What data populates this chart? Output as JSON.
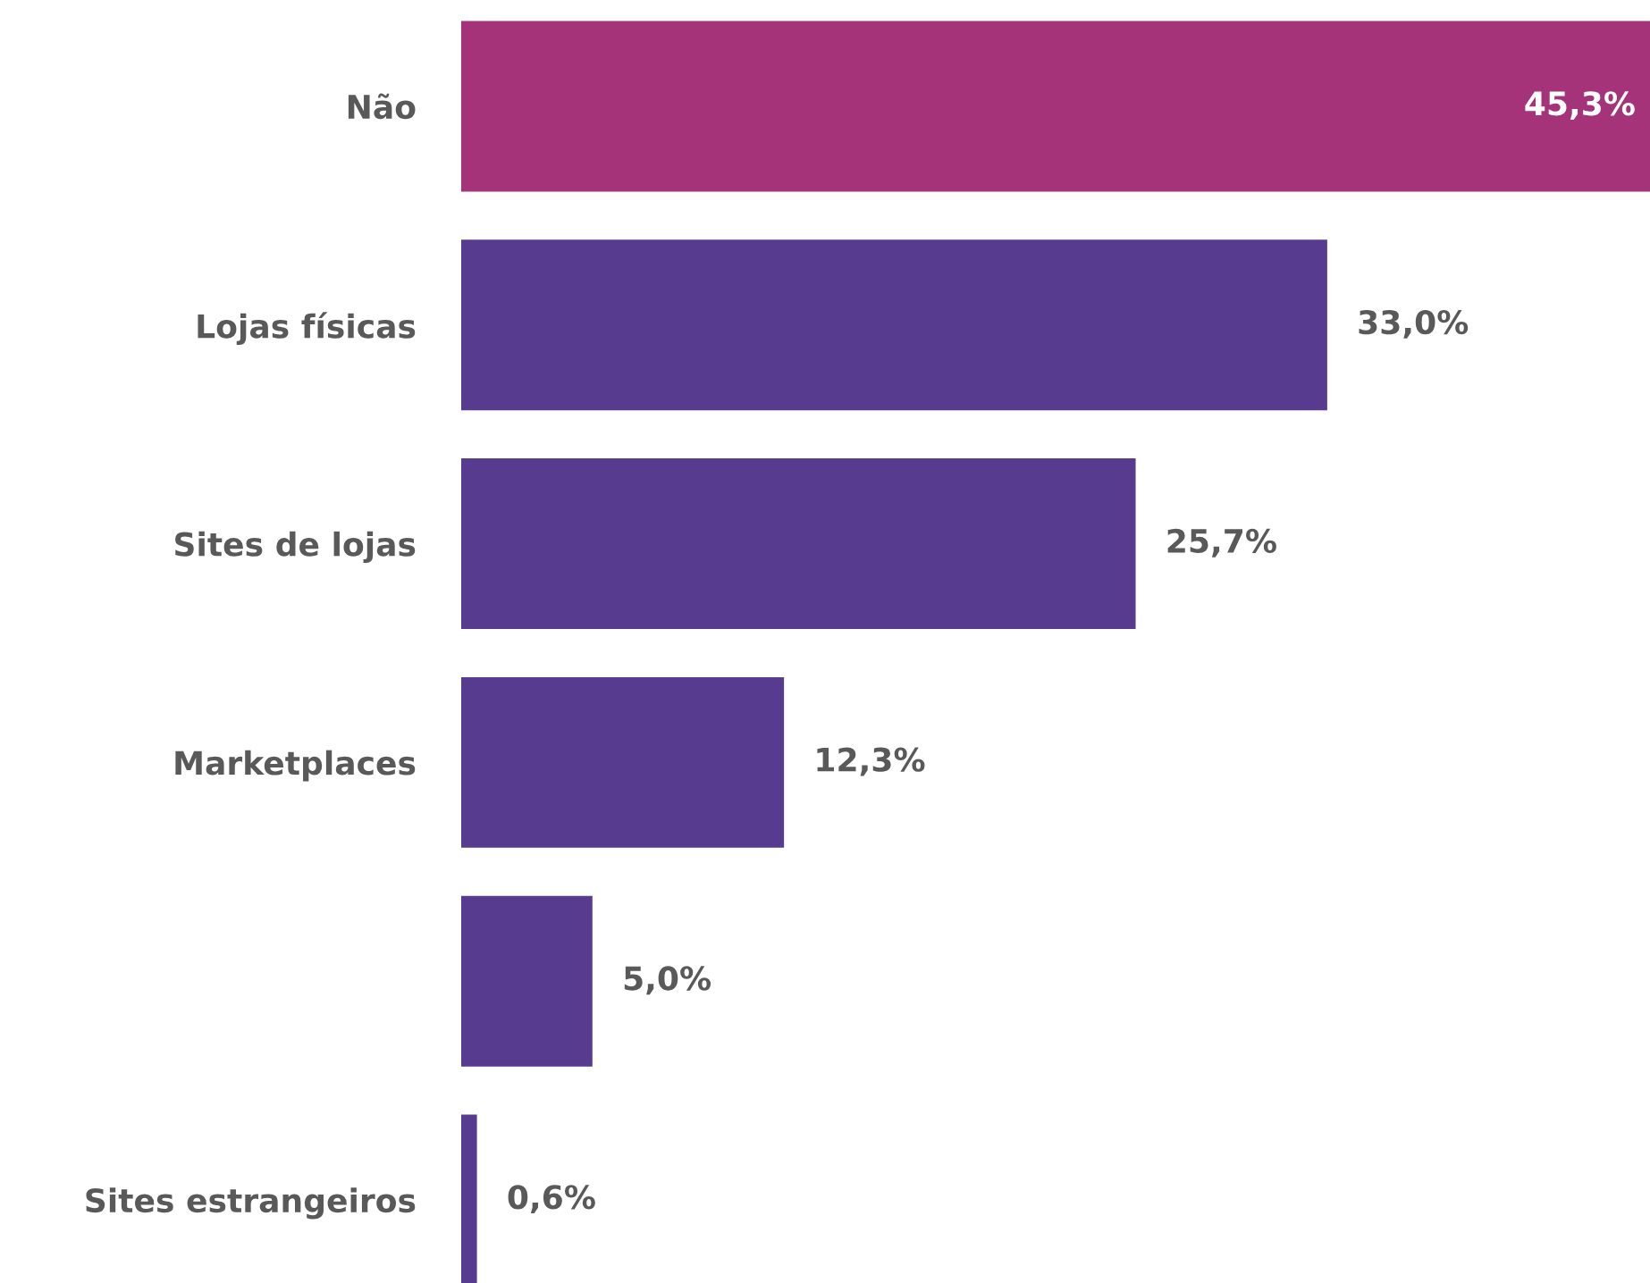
{
  "chart_data": {
    "type": "bar",
    "orientation": "horizontal",
    "categories": [
      "Não",
      "Lojas físicas",
      "Sites de lojas",
      "Marketplaces",
      null,
      "Sites estrangeiros"
    ],
    "values": [
      45.3,
      33.0,
      25.7,
      12.3,
      5.0,
      0.6
    ],
    "value_labels": [
      "45,3%",
      "33,0%",
      "25,7%",
      "12,3%",
      "5,0%",
      "0,6%"
    ],
    "colors": [
      "#a4337a",
      "#573b8f",
      "#573b8f",
      "#573b8f",
      "#573b8f",
      "#573b8f"
    ],
    "grid": false,
    "legend": false
  }
}
